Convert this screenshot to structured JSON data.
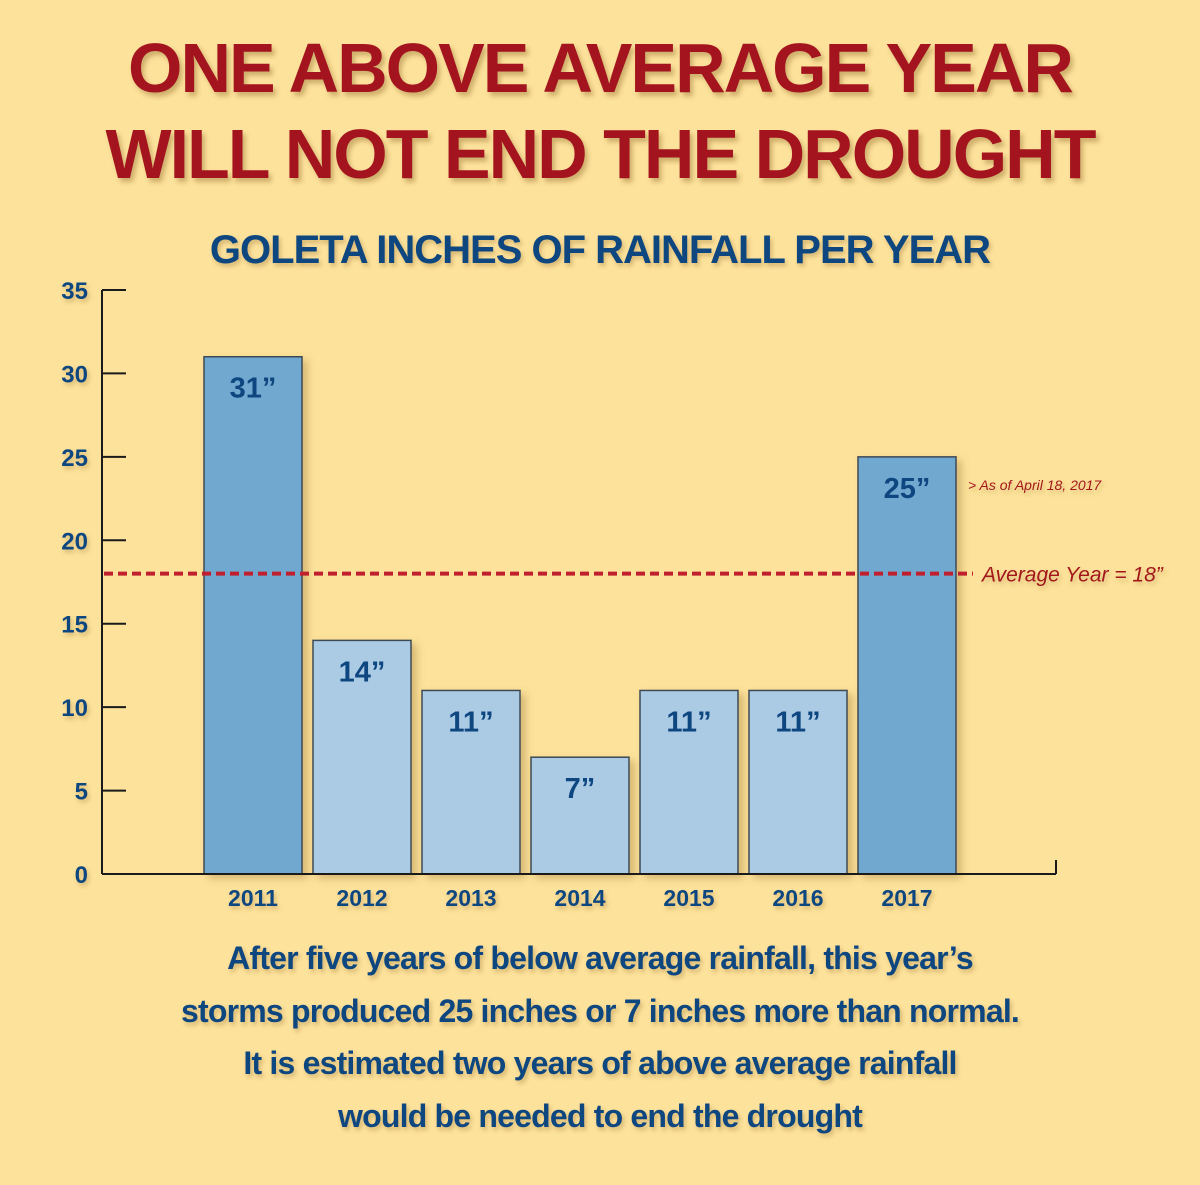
{
  "header": {
    "title_line1": "ONE ABOVE AVERAGE YEAR",
    "title_line2": "WILL NOT END THE DROUGHT",
    "subtitle": "GOLETA INCHES OF RAINFALL PER YEAR"
  },
  "chart_data": {
    "type": "bar",
    "title": "GOLETA INCHES OF RAINFALL PER YEAR",
    "xlabel": "",
    "ylabel": "",
    "categories": [
      "2011",
      "2012",
      "2013",
      "2014",
      "2015",
      "2016",
      "2017"
    ],
    "values": [
      31,
      14,
      11,
      7,
      11,
      11,
      25
    ],
    "data_labels": [
      "31”",
      "14”",
      "11”",
      "7”",
      "11”",
      "11”",
      "25”"
    ],
    "highlight": [
      true,
      false,
      false,
      false,
      false,
      false,
      true
    ],
    "ylim": [
      0,
      35
    ],
    "yticks": [
      0,
      5,
      10,
      15,
      20,
      25,
      30,
      35
    ],
    "grid": false,
    "reference_line": {
      "value": 18,
      "label": "Average Year = 18”"
    },
    "annotations": [
      {
        "category": "2017",
        "text": "> As of April 18, 2017"
      }
    ],
    "colors": {
      "highlight_bar": "#6fa8cf",
      "normal_bar": "#abcbe5",
      "bar_border": "#3d4a55",
      "label": "#0e4680",
      "reference_line": "#c0202e",
      "annotation": "#a3141f",
      "axis": "#1a1a1a"
    }
  },
  "caption": {
    "line1": "After five years of below average rainfall, this year’s",
    "line2": "storms produced 25 inches or 7 inches more than normal.",
    "line3": "It is estimated two years of above average rainfall",
    "line4": "would be needed to end the drought"
  }
}
